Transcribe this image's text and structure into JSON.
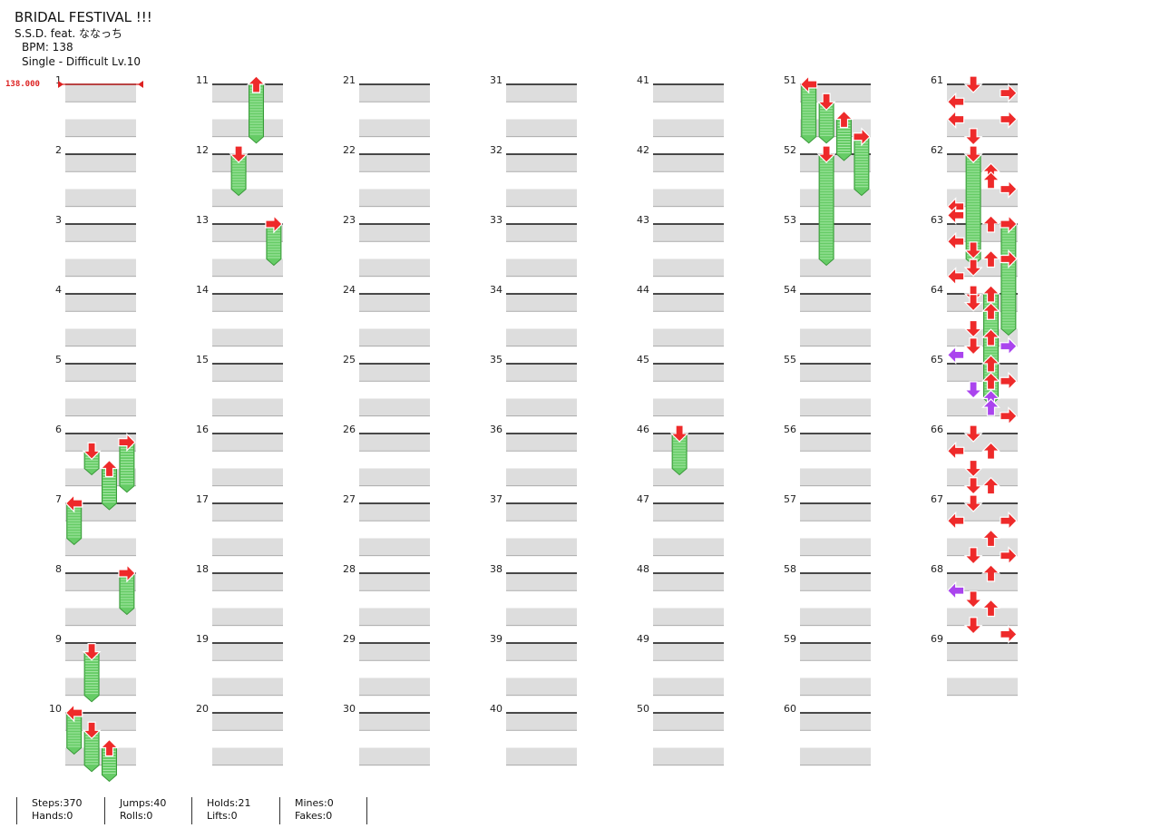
{
  "song": {
    "title": "BRIDAL FESTIVAL !!!",
    "artist": "S.S.D. feat. ななっち",
    "bpm": "BPM: 138",
    "difficulty": "Single - Difficult Lv.10"
  },
  "bpm_marker": "138.000",
  "measures": [
    "1",
    "2",
    "3",
    "4",
    "5",
    "6",
    "7",
    "8",
    "9",
    "10",
    "11",
    "12",
    "13",
    "14",
    "15",
    "16",
    "17",
    "18",
    "19",
    "20",
    "21",
    "22",
    "23",
    "24",
    "25",
    "26",
    "27",
    "28",
    "29",
    "30",
    "31",
    "32",
    "33",
    "34",
    "35",
    "36",
    "37",
    "38",
    "39",
    "40",
    "41",
    "42",
    "43",
    "44",
    "45",
    "46",
    "47",
    "48",
    "49",
    "50",
    "51",
    "52",
    "53",
    "54",
    "55",
    "56",
    "57",
    "58",
    "59",
    "60",
    "61",
    "62",
    "63",
    "64",
    "65",
    "66",
    "67",
    "68",
    "69"
  ],
  "colors": {
    "quarter_note": "#ee2a2a",
    "eighth_note": "#aa44ee",
    "hold": "#66cc66",
    "band": "#dddddd",
    "bpm_line": "#dd2222"
  },
  "icons": [
    "arrow-left-icon",
    "arrow-down-icon",
    "arrow-up-icon",
    "arrow-right-icon",
    "hold-note-icon"
  ],
  "notes": [
    [
      61,
      0,
      "down",
      0
    ],
    [
      61,
      0.5,
      "right",
      0
    ],
    [
      61,
      1,
      "left",
      0
    ],
    [
      61,
      2,
      "left",
      0
    ],
    [
      61,
      2,
      "right",
      0
    ],
    [
      61,
      3,
      "down",
      0
    ],
    [
      62,
      0,
      "down",
      0
    ],
    [
      62,
      1,
      "up",
      0
    ],
    [
      62,
      1.5,
      "up",
      0
    ],
    [
      62,
      2,
      "right",
      0
    ],
    [
      62,
      3,
      "left",
      0
    ],
    [
      62,
      3.5,
      "left",
      0
    ],
    [
      63,
      0,
      "up",
      0
    ],
    [
      63,
      1,
      "left",
      0
    ],
    [
      63,
      1.5,
      "down",
      0
    ],
    [
      63,
      2,
      "up",
      0
    ],
    [
      63,
      2,
      "right",
      0
    ],
    [
      63,
      2.5,
      "down",
      0
    ],
    [
      63,
      3,
      "left",
      0
    ],
    [
      64,
      0,
      "down",
      0
    ],
    [
      64,
      0.5,
      "down",
      0
    ],
    [
      64,
      1,
      "up",
      0
    ],
    [
      64,
      2,
      "down",
      0
    ],
    [
      64,
      2.5,
      "up",
      0
    ],
    [
      64,
      3,
      "down",
      0
    ],
    [
      64,
      3,
      "right",
      1
    ],
    [
      64,
      3.5,
      "left",
      1
    ],
    [
      65,
      0,
      "up",
      0
    ],
    [
      65,
      1,
      "up",
      0
    ],
    [
      65,
      1,
      "right",
      0
    ],
    [
      65,
      1.5,
      "down",
      1
    ],
    [
      65,
      2,
      "up",
      1
    ],
    [
      65,
      2.5,
      "up",
      1
    ],
    [
      65,
      3,
      "right",
      0
    ],
    [
      66,
      0,
      "down",
      0
    ],
    [
      66,
      1,
      "left",
      0
    ],
    [
      66,
      1,
      "up",
      0
    ],
    [
      66,
      2,
      "down",
      0
    ],
    [
      66,
      3,
      "down",
      0
    ],
    [
      66,
      3,
      "up",
      0
    ],
    [
      67,
      0,
      "down",
      0
    ],
    [
      67,
      1,
      "left",
      0
    ],
    [
      67,
      1,
      "right",
      0
    ],
    [
      67,
      2,
      "up",
      0
    ],
    [
      67,
      3,
      "down",
      0
    ],
    [
      67,
      3,
      "right",
      0
    ],
    [
      68,
      0,
      "up",
      0
    ],
    [
      68,
      1,
      "left",
      1
    ],
    [
      68,
      1.5,
      "down",
      0
    ],
    [
      68,
      2,
      "up",
      0
    ],
    [
      68,
      3,
      "down",
      0
    ],
    [
      68,
      3.5,
      "right",
      0
    ]
  ],
  "holds": [
    [
      6,
      0.5,
      6.75,
      "right"
    ],
    [
      6,
      1,
      6.5,
      "down"
    ],
    [
      6,
      2,
      7,
      "up"
    ],
    [
      7,
      0,
      7.5,
      "left"
    ],
    [
      8,
      0,
      8.5,
      "right"
    ],
    [
      9,
      0.5,
      9.75,
      "down"
    ],
    [
      10,
      0,
      10.5,
      "left"
    ],
    [
      10,
      1,
      10.75,
      "down"
    ],
    [
      10,
      2,
      11,
      "up"
    ],
    [
      11,
      0,
      11.75,
      "up"
    ],
    [
      12,
      0,
      12.5,
      "down"
    ],
    [
      13,
      0,
      13.5,
      "right"
    ],
    [
      46,
      0,
      46.5,
      "down"
    ],
    [
      51,
      0,
      51.75,
      "left"
    ],
    [
      51,
      1,
      51.75,
      "down"
    ],
    [
      51,
      2,
      52,
      "up"
    ],
    [
      51,
      3,
      52.5,
      "right"
    ],
    [
      52,
      0,
      53.5,
      "down"
    ],
    [
      62,
      0,
      63.5,
      "down"
    ],
    [
      63,
      0,
      64.5,
      "right"
    ],
    [
      64,
      0,
      65.5,
      "up"
    ]
  ],
  "stats": {
    "steps": "Steps:370",
    "hands": "Hands:0",
    "jumps": "Jumps:40",
    "rolls": "Rolls:0",
    "holds": "Holds:21",
    "lifts": "Lifts:0",
    "mines": "Mines:0",
    "fakes": "Fakes:0"
  }
}
